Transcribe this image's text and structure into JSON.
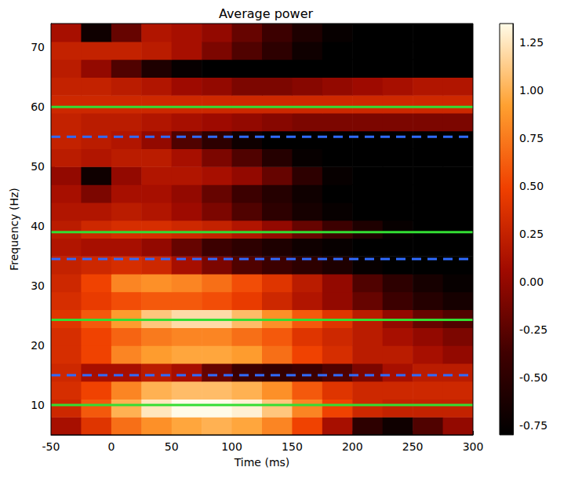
{
  "chart_data": {
    "type": "heatmap",
    "title": "Average power",
    "x_label": "Time (ms)",
    "y_label": "Frequency (Hz)",
    "xlim": [
      -50,
      300
    ],
    "xticks": [
      -50,
      0,
      50,
      100,
      150,
      200,
      250,
      300
    ],
    "ylim": [
      5,
      74
    ],
    "yticks": [
      10,
      20,
      30,
      40,
      50,
      60,
      70
    ],
    "x": [
      -37.5,
      -12.5,
      12.5,
      37.5,
      62.5,
      87.5,
      112.5,
      137.5,
      162.5,
      187.5,
      212.5,
      237.5,
      262.5,
      287.5
    ],
    "y": [
      6.5,
      9.5,
      12.5,
      15.5,
      18.5,
      21.5,
      24.5,
      27.5,
      30.5,
      33.5,
      36.5,
      39.5,
      42.5,
      45.5,
      48.5,
      51.5,
      54.5,
      57.5,
      60.5,
      63.5,
      66.5,
      69.5,
      72.5
    ],
    "cells": [
      [
        0.1,
        0.4,
        0.7,
        0.85,
        0.95,
        1.0,
        0.95,
        0.8,
        0.5,
        0.1,
        -0.5,
        -0.7,
        -0.3,
        0.0
      ],
      [
        0.3,
        0.6,
        1.0,
        1.25,
        1.35,
        1.35,
        1.3,
        1.1,
        0.8,
        0.5,
        0.3,
        0.25,
        0.25,
        0.25
      ],
      [
        0.35,
        0.5,
        0.8,
        1.0,
        1.05,
        1.05,
        1.0,
        0.85,
        0.6,
        0.4,
        0.3,
        0.3,
        0.3,
        0.3
      ],
      [
        0.3,
        0.1,
        0.1,
        0.2,
        0.1,
        -0.2,
        -0.4,
        -0.45,
        -0.4,
        -0.3,
        -0.1,
        0.1,
        0.2,
        0.2
      ],
      [
        0.35,
        0.5,
        0.8,
        0.9,
        0.95,
        0.95,
        0.9,
        0.7,
        0.5,
        0.35,
        0.2,
        0.2,
        0.1,
        0.0
      ],
      [
        0.35,
        0.5,
        0.65,
        0.75,
        0.8,
        0.8,
        0.7,
        0.6,
        0.4,
        0.3,
        0.2,
        0.1,
        0.0,
        -0.1
      ],
      [
        0.4,
        0.6,
        0.9,
        1.1,
        1.2,
        1.2,
        1.05,
        0.85,
        0.6,
        0.4,
        0.2,
        0.0,
        -0.2,
        -0.3
      ],
      [
        0.35,
        0.45,
        0.55,
        0.6,
        0.6,
        0.55,
        0.45,
        0.3,
        0.15,
        0.0,
        -0.2,
        -0.4,
        -0.55,
        -0.65
      ],
      [
        0.3,
        0.5,
        0.8,
        0.85,
        0.8,
        0.7,
        0.55,
        0.4,
        0.2,
        0.0,
        -0.3,
        -0.5,
        -0.65,
        -0.75
      ],
      [
        0.25,
        0.3,
        0.35,
        0.3,
        0.1,
        -0.1,
        -0.3,
        -0.4,
        -0.5,
        -0.6,
        -0.75,
        -0.8,
        -0.8,
        -0.8
      ],
      [
        0.15,
        0.1,
        0.1,
        0.0,
        -0.2,
        -0.4,
        -0.5,
        -0.6,
        -0.7,
        -0.75,
        -0.8,
        -0.8,
        -0.8,
        -0.8
      ],
      [
        0.2,
        0.3,
        0.35,
        0.35,
        0.3,
        0.25,
        0.15,
        0.0,
        -0.2,
        -0.4,
        -0.6,
        -0.75,
        -0.8,
        -0.8
      ],
      [
        0.15,
        0.15,
        0.2,
        0.15,
        0.05,
        -0.1,
        -0.3,
        -0.5,
        -0.65,
        -0.75,
        -0.8,
        -0.8,
        -0.8,
        -0.8
      ],
      [
        0.1,
        -0.1,
        0.1,
        0.1,
        0.0,
        -0.2,
        -0.4,
        -0.55,
        -0.7,
        -0.8,
        -0.8,
        -0.8,
        -0.8,
        -0.8
      ],
      [
        0.0,
        -0.7,
        0.0,
        0.15,
        0.15,
        0.1,
        0.0,
        -0.2,
        -0.5,
        -0.75,
        -0.8,
        -0.8,
        -0.8,
        -0.8
      ],
      [
        0.2,
        0.15,
        0.2,
        0.2,
        0.1,
        -0.1,
        -0.3,
        -0.55,
        -0.75,
        -0.8,
        -0.8,
        -0.8,
        -0.8,
        -0.8
      ],
      [
        0.25,
        0.2,
        0.15,
        0.0,
        -0.3,
        -0.5,
        -0.7,
        -0.8,
        -0.8,
        -0.8,
        -0.8,
        -0.8,
        -0.8,
        -0.8
      ],
      [
        0.25,
        0.2,
        0.2,
        0.15,
        0.1,
        0.05,
        0.0,
        -0.05,
        -0.1,
        -0.1,
        -0.1,
        -0.1,
        -0.1,
        -0.1
      ],
      [
        0.3,
        0.3,
        0.3,
        0.3,
        0.3,
        0.3,
        0.3,
        0.3,
        0.3,
        0.3,
        0.3,
        0.3,
        0.3,
        0.3
      ],
      [
        0.25,
        0.25,
        0.2,
        0.15,
        0.05,
        0.0,
        -0.1,
        -0.1,
        -0.05,
        0.0,
        0.05,
        0.1,
        0.15,
        0.15
      ],
      [
        0.2,
        0.0,
        -0.3,
        -0.6,
        -0.75,
        -0.8,
        -0.8,
        -0.8,
        -0.8,
        -0.8,
        -0.8,
        -0.8,
        -0.8,
        -0.8
      ],
      [
        0.25,
        0.25,
        0.25,
        0.2,
        0.1,
        -0.1,
        -0.3,
        -0.5,
        -0.7,
        -0.8,
        -0.8,
        -0.8,
        -0.8,
        -0.8
      ],
      [
        0.1,
        -0.7,
        -0.2,
        0.15,
        0.1,
        0.0,
        -0.2,
        -0.4,
        -0.6,
        -0.75,
        -0.8,
        -0.8,
        -0.8,
        -0.8
      ]
    ],
    "colorbar_range": [
      -0.8,
      1.35
    ],
    "colorbar_ticks": [
      {
        "value": -0.75,
        "label": "-0.75"
      },
      {
        "value": -0.5,
        "label": "-0.50"
      },
      {
        "value": -0.25,
        "label": "-0.25"
      },
      {
        "value": 0,
        "label": "0.00"
      },
      {
        "value": 0.25,
        "label": "0.25"
      },
      {
        "value": 0.5,
        "label": "0.50"
      },
      {
        "value": 0.75,
        "label": "0.75"
      },
      {
        "value": 1,
        "label": "1.00"
      },
      {
        "value": 1.25,
        "label": "1.25"
      }
    ],
    "hlines": [
      {
        "value": 10,
        "color": "#33dd33",
        "line_style": "solid"
      },
      {
        "value": 24.3,
        "color": "#33dd33",
        "line_style": "solid"
      },
      {
        "value": 39,
        "color": "#33dd33",
        "line_style": "solid"
      },
      {
        "value": 60,
        "color": "#33dd33",
        "line_style": "solid"
      },
      {
        "value": 15,
        "color": "#2f6bff",
        "line_style": "dashed"
      },
      {
        "value": 34.5,
        "color": "#2f6bff",
        "line_style": "dashed"
      },
      {
        "value": 55,
        "color": "#2f6bff",
        "line_style": "dashed"
      }
    ]
  }
}
